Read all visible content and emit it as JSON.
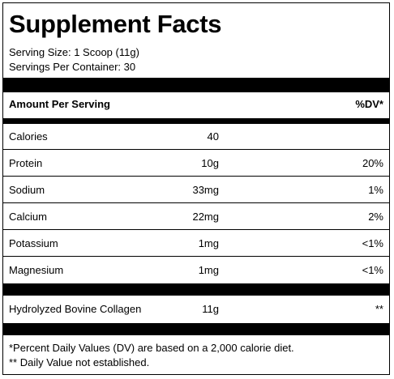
{
  "label": {
    "title": "Supplement Facts",
    "serving_size": "Serving Size: 1 Scoop (11g)",
    "servings_per_container": "Servings Per Container: 30",
    "amount_header": "Amount Per Serving",
    "dv_header": "%DV*"
  },
  "nutrients": [
    {
      "name": "Calories",
      "amount": "40",
      "dv": ""
    },
    {
      "name": "Protein",
      "amount": "10g",
      "dv": "20%"
    },
    {
      "name": "Sodium",
      "amount": "33mg",
      "dv": "1%"
    },
    {
      "name": "Calcium",
      "amount": "22mg",
      "dv": "2%"
    },
    {
      "name": "Potassium",
      "amount": "1mg",
      "dv": "<1%"
    },
    {
      "name": "Magnesium",
      "amount": "1mg",
      "dv": "<1%"
    }
  ],
  "other": [
    {
      "name": "Hydrolyzed Bovine Collagen",
      "amount": "11g",
      "dv": "**"
    }
  ],
  "footnotes": {
    "dv_note": "*Percent Daily Values (DV) are based on a 2,000 calorie diet.",
    "not_established": "** Daily Value not established."
  }
}
